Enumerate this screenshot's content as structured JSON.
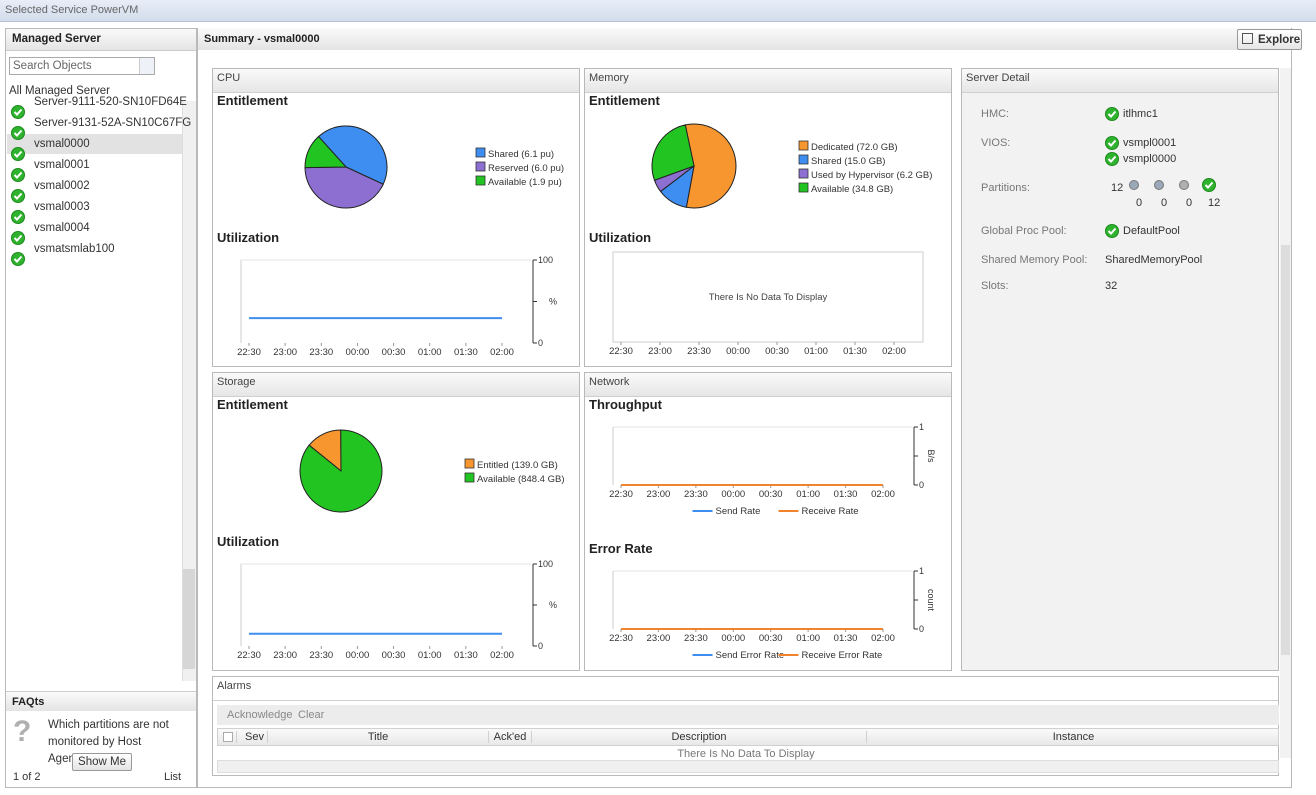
{
  "window": {
    "title": "Selected Service PowerVM"
  },
  "sidebar": {
    "title": "Managed Server",
    "search_placeholder": "Search Objects",
    "root": "All Managed Server",
    "servers": [
      "Server-9111-520-SN10FD64E",
      "Server-9131-52A-SN10C67FG",
      "vsmal0000",
      "vsmal0001",
      "vsmal0002",
      "vsmal0003",
      "vsmal0004",
      "vsmatsmlab100"
    ]
  },
  "faq": {
    "title": "FAQts",
    "question": "Which partitions are not monitored by Host Agent?",
    "button": "Show Me",
    "pager": "1 of 2",
    "list": "List"
  },
  "summary": {
    "title": "Summary -  vsmal0000",
    "explore": "Explore"
  },
  "cpu": {
    "title": "CPU",
    "entitlement": {
      "heading": "Entitlement",
      "slices": [
        {
          "label": "Shared (6.1 pu)",
          "value": 6.1,
          "color": "#3d8ef0"
        },
        {
          "label": "Reserved (6.0 pu)",
          "value": 6.0,
          "color": "#8c6fd1"
        },
        {
          "label": "Available (1.9 pu)",
          "value": 1.9,
          "color": "#22c422"
        }
      ]
    },
    "utilization": {
      "heading": "Utilization",
      "categories": [
        "22:30",
        "23:00",
        "23:30",
        "00:00",
        "00:30",
        "01:00",
        "01:30",
        "02:00"
      ],
      "values": [
        30,
        30,
        30,
        30,
        30,
        30,
        30,
        30
      ],
      "color": "#3d8ef0",
      "ylim": [
        0,
        100
      ],
      "yticks": [
        0,
        100
      ],
      "ylabel": "%"
    }
  },
  "memory": {
    "title": "Memory",
    "entitlement": {
      "heading": "Entitlement",
      "slices": [
        {
          "label": "Dedicated (72.0 GB)",
          "value": 72.0,
          "color": "#f7962f"
        },
        {
          "label": "Shared (15.0 GB)",
          "value": 15.0,
          "color": "#3d8ef0"
        },
        {
          "label": "Used by Hypervisor (6.2 GB)",
          "value": 6.2,
          "color": "#8c6fd1"
        },
        {
          "label": "Available (34.8 GB)",
          "value": 34.8,
          "color": "#22c422"
        }
      ]
    },
    "utilization": {
      "heading": "Utilization",
      "categories": [
        "22:30",
        "23:00",
        "23:30",
        "00:00",
        "00:30",
        "01:00",
        "01:30",
        "02:00"
      ],
      "no_data": "There Is No Data To Display"
    }
  },
  "storage": {
    "title": "Storage",
    "entitlement": {
      "heading": "Entitlement",
      "slices": [
        {
          "label": "Entitled (139.0 GB)",
          "value": 139.0,
          "color": "#f7962f"
        },
        {
          "label": "Available (848.4 GB)",
          "value": 848.4,
          "color": "#22c422"
        }
      ]
    },
    "utilization": {
      "heading": "Utilization",
      "categories": [
        "22:30",
        "23:00",
        "23:30",
        "00:00",
        "00:30",
        "01:00",
        "01:30",
        "02:00"
      ],
      "values": [
        15,
        15,
        15,
        15,
        15,
        15,
        15,
        15
      ],
      "color": "#3d8ef0",
      "ylim": [
        0,
        100
      ],
      "yticks": [
        0,
        100
      ],
      "ylabel": "%"
    }
  },
  "network": {
    "title": "Network",
    "throughput": {
      "heading": "Throughput",
      "categories": [
        "22:30",
        "23:00",
        "23:30",
        "00:00",
        "00:30",
        "01:00",
        "01:30",
        "02:00"
      ],
      "ylim": [
        0,
        1
      ],
      "yticks": [
        0,
        1
      ],
      "ylabel": "B/s",
      "series": [
        {
          "name": "Send Rate",
          "color": "#3d8ef0",
          "values": [
            0,
            0,
            0,
            0,
            0,
            0,
            0,
            0
          ]
        },
        {
          "name": "Receive Rate",
          "color": "#f0832c",
          "values": [
            0,
            0,
            0,
            0,
            0,
            0,
            0,
            0
          ]
        }
      ]
    },
    "error_rate": {
      "heading": "Error Rate",
      "categories": [
        "22:30",
        "23:00",
        "23:30",
        "00:00",
        "00:30",
        "01:00",
        "01:30",
        "02:00"
      ],
      "ylim": [
        0,
        1
      ],
      "yticks": [
        0,
        1
      ],
      "ylabel": "count",
      "series": [
        {
          "name": "Send Error Rate",
          "color": "#3d8ef0",
          "values": [
            0,
            0,
            0,
            0,
            0,
            0,
            0,
            0
          ]
        },
        {
          "name": "Receive Error Rate",
          "color": "#f0832c",
          "values": [
            0,
            0,
            0,
            0,
            0,
            0,
            0,
            0
          ]
        }
      ]
    }
  },
  "server_detail": {
    "title": "Server Detail",
    "hmc": {
      "label": "HMC:",
      "value": "itlhmc1"
    },
    "vios": {
      "label": "VIOS:",
      "values": [
        "vsmpl0001",
        "vsmpl0000"
      ]
    },
    "partitions": {
      "label": "Partitions:",
      "total": 12,
      "counts": [
        0,
        0,
        0,
        12
      ]
    },
    "global_proc_pool": {
      "label": "Global Proc Pool:",
      "value": "DefaultPool"
    },
    "shared_memory_pool": {
      "label": "Shared Memory Pool:",
      "value": "SharedMemoryPool"
    },
    "slots": {
      "label": "Slots:",
      "value": 32
    }
  },
  "alarms": {
    "title": "Alarms",
    "actions": [
      "Acknowledge",
      "Clear"
    ],
    "columns": [
      "Sev",
      "Title",
      "Ack'ed",
      "Description",
      "Instance"
    ],
    "no_data": "There Is No Data To Display"
  }
}
